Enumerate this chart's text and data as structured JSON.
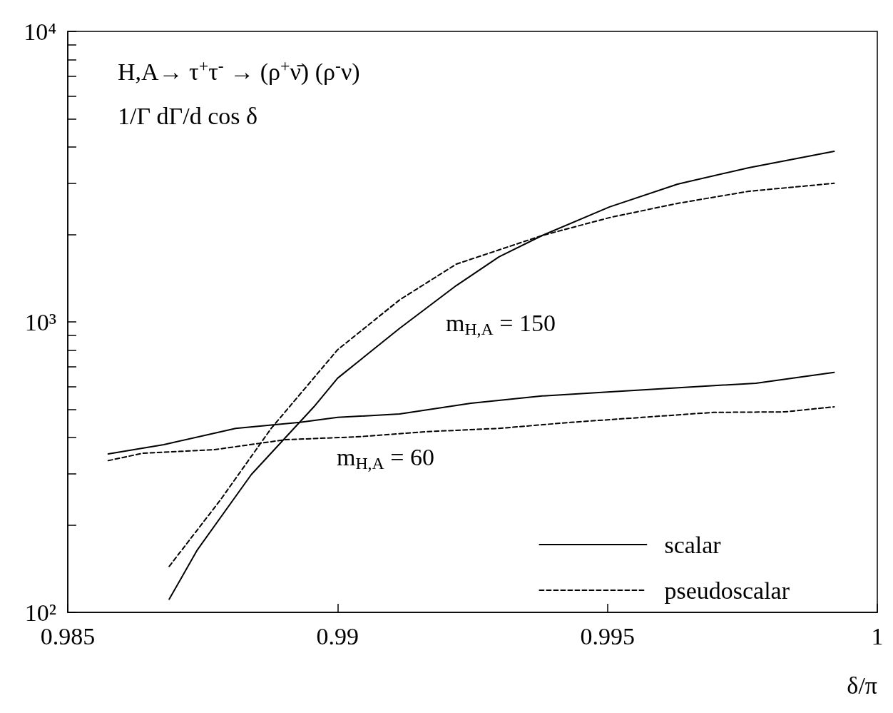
{
  "chart_data": {
    "type": "line",
    "xlabel": "δ/π",
    "log": "y",
    "grid": false,
    "legend": "bottom right",
    "marker": "none",
    "xlim": [
      0.985,
      1
    ],
    "xticks": [
      0.985,
      0.99,
      0.995,
      1
    ],
    "ylim": [
      100,
      10000
    ],
    "yticks": [
      {
        "value": 100,
        "label": "10²"
      },
      {
        "value": 200,
        "label": null
      },
      {
        "value": 300,
        "label": null
      },
      {
        "value": 400,
        "label": null
      },
      {
        "value": 500,
        "label": null
      },
      {
        "value": 600,
        "label": null
      },
      {
        "value": 700,
        "label": null
      },
      {
        "value": 800,
        "label": null
      },
      {
        "value": 900,
        "label": null
      },
      {
        "value": 1000,
        "label": "10³"
      },
      {
        "value": 2000,
        "label": null
      },
      {
        "value": 3000,
        "label": null
      },
      {
        "value": 4000,
        "label": null
      },
      {
        "value": 5000,
        "label": null
      },
      {
        "value": 6000,
        "label": null
      },
      {
        "value": 7000,
        "label": null
      },
      {
        "value": 8000,
        "label": null
      },
      {
        "value": 9000,
        "label": null
      },
      {
        "value": 10000,
        "label": "10⁴"
      }
    ],
    "annotations": [
      "H,A→ τ$^{+}$τ$^{-}$ → (ρ$^{+}$ν̄) (ρ$^{-}$ν)",
      "1/Γ dΓ/d cos δ",
      "m$_{H,A}$ = 150",
      "m$_{H,A}$ = 60"
    ],
    "series": [
      {
        "name": "scalar",
        "color": "#000000",
        "line_style": "solid",
        "x": [
          0.98688,
          0.9874,
          0.9884,
          0.98956,
          0.99,
          0.99115,
          0.9922,
          0.99299,
          0.99379,
          0.99504,
          0.9963,
          0.99762,
          0.9992
        ],
        "values": [
          111,
          164,
          298,
          510,
          640,
          950,
          1334,
          1674,
          1983,
          2488,
          2981,
          3394,
          3864
        ]
      },
      {
        "name": "pseudoscalar",
        "color": "#000000",
        "line_style": "dashed",
        "x": [
          0.98688,
          0.98783,
          0.98877,
          0.99,
          0.99115,
          0.9922,
          0.99379,
          0.99504,
          0.9963,
          0.99762,
          0.9992
        ],
        "values": [
          144,
          244,
          430,
          802,
          1191,
          1581,
          1983,
          2286,
          2559,
          2816,
          3000
        ]
      },
      {
        "color": "#000000",
        "line_style": "solid",
        "x": [
          0.98575,
          0.98678,
          0.98811,
          0.9893,
          0.99,
          0.99115,
          0.99247,
          0.99379,
          0.99511,
          0.99643,
          0.99775,
          0.9992
        ],
        "values": [
          351,
          378,
          430,
          451,
          469,
          482,
          525,
          556,
          575,
          595,
          615,
          670
        ]
      },
      {
        "color": "#000000",
        "line_style": "dashed",
        "x": [
          0.98575,
          0.98639,
          0.98771,
          0.98903,
          0.99035,
          0.99167,
          0.99299,
          0.99432,
          0.99564,
          0.99696,
          0.99828,
          0.9992
        ],
        "values": [
          333,
          353,
          363,
          393,
          402,
          419,
          430,
          451,
          469,
          488,
          490,
          510
        ]
      }
    ]
  }
}
